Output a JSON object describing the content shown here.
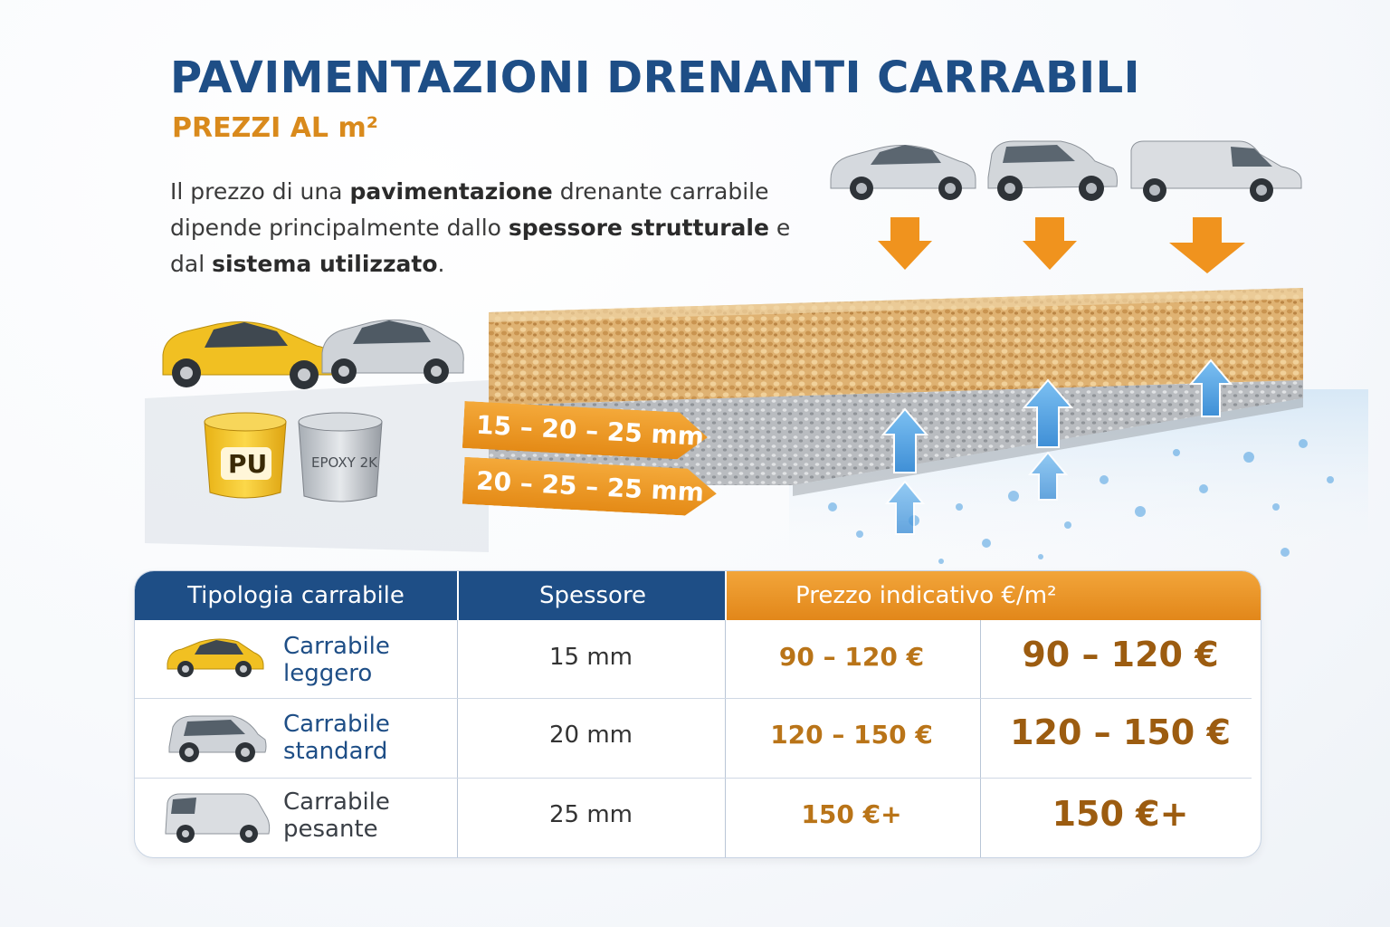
{
  "header": {
    "title": "PAVIMENTAZIONI DRENANTI CARRABILI",
    "subtitle": "PREZZI AL m²"
  },
  "intro": {
    "p1": "Il prezzo di una ",
    "b1": "pavimentazione",
    "p2": " drenante carrabile dipende principalmente dallo ",
    "b2": "spessore strutturale",
    "p3": " e dal ",
    "b3": "sistema utilizzato",
    "p4": "."
  },
  "illustration": {
    "bucket_pu": "PU",
    "bucket_epoxy": "EPOXY 2K",
    "tag_top": "15 – 20 – 25 mm",
    "tag_bottom": "20 – 25 – 25 mm",
    "colors": {
      "accent_orange": "#e8901e",
      "water_blue": "#4a9ee0",
      "brand_blue": "#1e4e86"
    }
  },
  "table": {
    "headers": [
      "Tipologia carrabile",
      "Spessore",
      "Prezzo indicativo €/m²"
    ],
    "rows": [
      {
        "type": "Carrabile leggero",
        "thickness": "15 mm",
        "price": "90 – 120 €",
        "price_big": "90 – 120 €",
        "icon": "hatchback-icon"
      },
      {
        "type": "Carrabile standard",
        "thickness": "20 mm",
        "price": "120 – 150 €",
        "price_big": "120 – 150 €",
        "icon": "suv-icon"
      },
      {
        "type": "Carrabile pesante",
        "thickness": "25 mm",
        "price": "150 €+",
        "price_big": "150 €+",
        "icon": "van-icon"
      }
    ]
  }
}
